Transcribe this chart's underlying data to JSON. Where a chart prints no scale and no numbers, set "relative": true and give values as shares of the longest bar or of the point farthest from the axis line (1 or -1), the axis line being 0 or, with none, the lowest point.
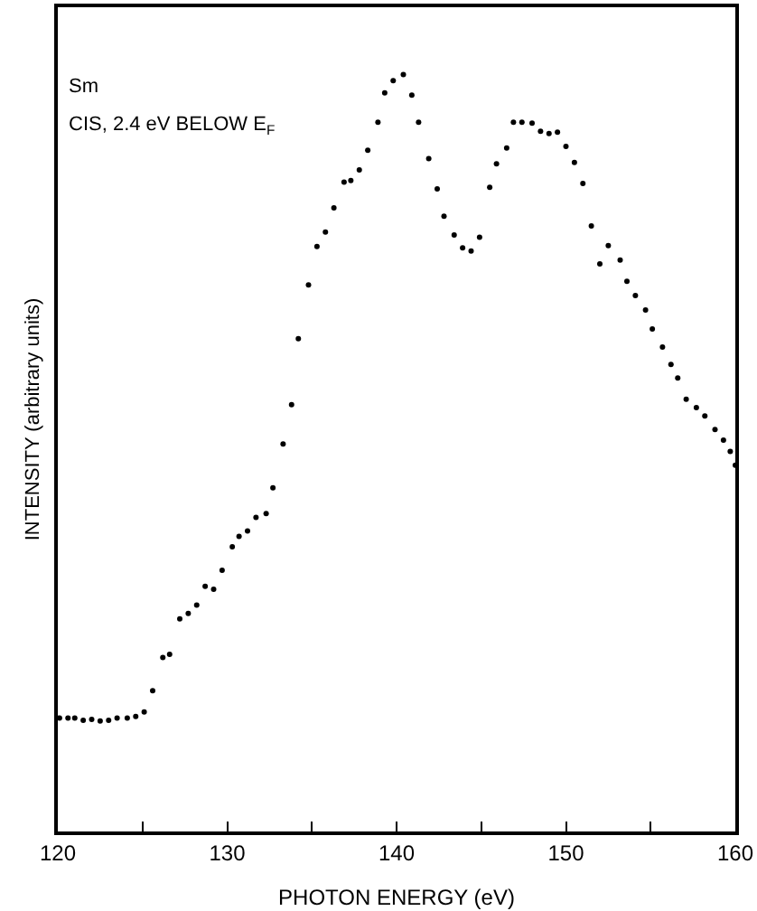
{
  "chart_data": {
    "type": "scatter",
    "relative": true,
    "xlabel": "PHOTON ENERGY (eV)",
    "ylabel": "INTENSITY (arbitrary units)",
    "annotations": [
      "Sm",
      "CIS, 2.4 eV BELOW E$_{F}$"
    ],
    "xlim": [
      120,
      160
    ],
    "xticks": [
      120,
      {
        "value": 125,
        "label": null
      },
      130,
      {
        "value": 135,
        "label": null
      },
      140,
      {
        "value": 145,
        "label": null
      },
      150,
      {
        "value": 155,
        "label": null
      },
      160
    ],
    "marker": "circle",
    "tick_labels": "x",
    "series": [
      {
        "color": "#000000",
        "x": [
          120.1,
          120.6,
          121.0,
          121.5,
          122.0,
          122.5,
          123.0,
          123.5,
          124.1,
          124.6,
          125.1,
          125.6,
          126.2,
          126.6,
          127.2,
          127.7,
          128.2,
          128.7,
          129.2,
          129.7,
          130.3,
          130.7,
          131.2,
          131.7,
          132.3,
          132.7,
          133.3,
          133.8,
          134.2,
          134.8,
          135.3,
          135.8,
          136.3,
          136.9,
          137.3,
          137.8,
          138.3,
          138.9,
          139.3,
          139.8,
          140.4,
          140.9,
          141.3,
          141.9,
          142.4,
          142.8,
          143.4,
          143.9,
          144.4,
          144.9,
          145.5,
          145.9,
          146.5,
          146.9,
          147.4,
          148.0,
          148.5,
          149.0,
          149.5,
          150.0,
          150.5,
          151.0,
          151.5,
          152.0,
          152.5,
          153.2,
          153.6,
          154.1,
          154.7,
          155.1,
          155.7,
          156.2,
          156.6,
          157.1,
          157.7,
          158.2,
          158.8,
          159.3,
          159.7,
          160.0
        ],
        "values": [
          0.15,
          0.15,
          0.15,
          0.147,
          0.148,
          0.146,
          0.147,
          0.15,
          0.15,
          0.152,
          0.158,
          0.186,
          0.23,
          0.234,
          0.281,
          0.288,
          0.299,
          0.324,
          0.32,
          0.345,
          0.376,
          0.39,
          0.397,
          0.415,
          0.42,
          0.454,
          0.512,
          0.564,
          0.651,
          0.722,
          0.773,
          0.792,
          0.824,
          0.858,
          0.86,
          0.874,
          0.9,
          0.937,
          0.976,
          0.992,
          1.0,
          0.973,
          0.937,
          0.889,
          0.849,
          0.813,
          0.788,
          0.771,
          0.767,
          0.785,
          0.851,
          0.882,
          0.903,
          0.937,
          0.937,
          0.936,
          0.925,
          0.922,
          0.924,
          0.905,
          0.884,
          0.856,
          0.8,
          0.75,
          0.774,
          0.755,
          0.727,
          0.708,
          0.689,
          0.664,
          0.64,
          0.617,
          0.599,
          0.571,
          0.56,
          0.549,
          0.531,
          0.517,
          0.502,
          0.484
        ]
      }
    ]
  }
}
